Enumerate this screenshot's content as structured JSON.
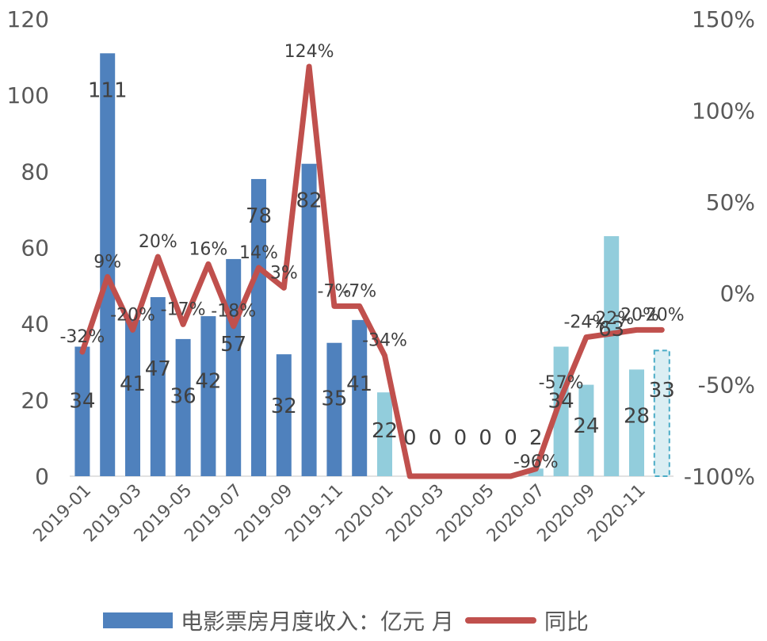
{
  "chart_data": {
    "type": "bar",
    "categories": [
      "2019-01",
      "2019-02",
      "2019-03",
      "2019-04",
      "2019-05",
      "2019-06",
      "2019-07",
      "2019-08",
      "2019-09",
      "2019-10",
      "2019-11",
      "2019-12",
      "2020-01",
      "2020-02",
      "2020-03",
      "2020-04",
      "2020-05",
      "2020-06",
      "2020-07",
      "2020-08",
      "2020-09",
      "2020-10",
      "2020-11",
      "2020-12"
    ],
    "x_tick_labels": [
      "2019-01",
      "2019-03",
      "2019-05",
      "2019-07",
      "2019-09",
      "2019-11",
      "2020-01",
      "2020-03",
      "2020-05",
      "2020-07",
      "2020-09",
      "2020-11"
    ],
    "series": [
      {
        "name": "电影票房月度收入：亿元 月",
        "type": "bar",
        "axis": "left",
        "values": [
          34,
          111,
          41,
          47,
          36,
          42,
          57,
          78,
          32,
          82,
          35,
          41,
          22,
          0,
          0,
          0,
          0,
          0,
          2,
          34,
          24,
          63,
          28,
          33
        ],
        "labels": [
          "34",
          "111",
          "41",
          "47",
          "36",
          "42",
          "57",
          "78",
          "32",
          "82",
          "35",
          "41",
          "22",
          "0",
          "0",
          "0",
          "0",
          "0",
          "2",
          "34",
          "24",
          "63",
          "28",
          "33"
        ]
      },
      {
        "name": "同比",
        "type": "line",
        "axis": "right",
        "values": [
          -32,
          9,
          -20,
          20,
          -17,
          16,
          -18,
          14,
          3,
          124,
          -7,
          -7,
          -34,
          -100,
          -100,
          -100,
          -100,
          -100,
          -96,
          -57,
          -24,
          -22,
          -20,
          -20
        ],
        "labels": [
          "-32%",
          "9%",
          "-20%",
          "20%",
          "-17%",
          "16%",
          "-18%",
          "14%",
          "3%",
          "124%",
          "-7%",
          "-7%",
          "-34%",
          "",
          "",
          "",
          "",
          "",
          "-96%",
          "-57%",
          "-24%",
          "-22%",
          "-20%",
          "-20%"
        ]
      }
    ],
    "y_left": {
      "ticks": [
        "0",
        "20",
        "40",
        "60",
        "80",
        "100",
        "120"
      ],
      "ylim": [
        0,
        120
      ]
    },
    "y_right": {
      "ticks": [
        "-100%",
        "-50%",
        "0%",
        "50%",
        "100%",
        "150%"
      ],
      "ylim": [
        -100,
        150
      ]
    },
    "colors": {
      "bar_2019": "#4f81bd",
      "bar_2020": "#92cddc",
      "bar_estimate": "#dbeef3",
      "bar_estimate_border": "#4bacc6",
      "line": "#c0504d"
    },
    "legend": {
      "placement": "bottom",
      "bar_label": "电影票房月度收入：亿元 月",
      "line_label": "同比"
    },
    "grid": false
  }
}
